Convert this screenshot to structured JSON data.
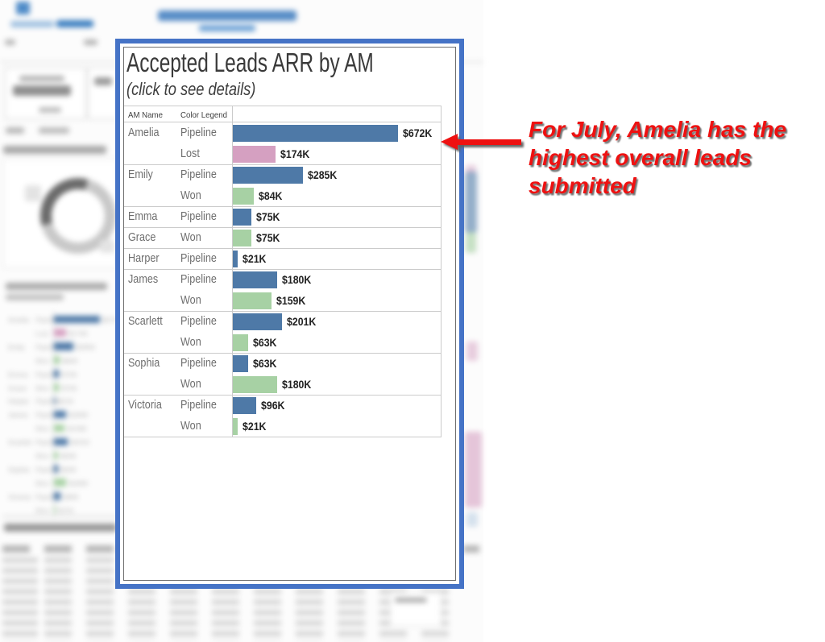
{
  "popup": {
    "title": "Accepted Leads ARR by AM",
    "subtitle": "(click to see details)",
    "columns": {
      "am_name": "AM Name",
      "color_legend": "Color Legend"
    },
    "rows": [
      {
        "am": "Amelia",
        "legend": "Pipeline",
        "value_k": 672,
        "label": "$672K",
        "group_start": true
      },
      {
        "am": "",
        "legend": "Lost",
        "value_k": 174,
        "label": "$174K"
      },
      {
        "am": "Emily",
        "legend": "Pipeline",
        "value_k": 285,
        "label": "$285K",
        "group_start": true
      },
      {
        "am": "",
        "legend": "Won",
        "value_k": 84,
        "label": "$84K"
      },
      {
        "am": "Emma",
        "legend": "Pipeline",
        "value_k": 75,
        "label": "$75K",
        "group_start": true
      },
      {
        "am": "Grace",
        "legend": "Won",
        "value_k": 75,
        "label": "$75K",
        "group_start": true
      },
      {
        "am": "Harper",
        "legend": "Pipeline",
        "value_k": 21,
        "label": "$21K",
        "group_start": true
      },
      {
        "am": "James",
        "legend": "Pipeline",
        "value_k": 180,
        "label": "$180K",
        "group_start": true
      },
      {
        "am": "",
        "legend": "Won",
        "value_k": 159,
        "label": "$159K"
      },
      {
        "am": "Scarlett",
        "legend": "Pipeline",
        "value_k": 201,
        "label": "$201K",
        "group_start": true
      },
      {
        "am": "",
        "legend": "Won",
        "value_k": 63,
        "label": "$63K"
      },
      {
        "am": "Sophia",
        "legend": "Pipeline",
        "value_k": 63,
        "label": "$63K",
        "group_start": true
      },
      {
        "am": "",
        "legend": "Won",
        "value_k": 180,
        "label": "$180K"
      },
      {
        "am": "Victoria",
        "legend": "Pipeline",
        "value_k": 96,
        "label": "$96K",
        "group_start": true
      },
      {
        "am": "",
        "legend": "Won",
        "value_k": 21,
        "label": "$21K"
      }
    ],
    "colors": {
      "Pipeline": "#4e79a7",
      "Lost": "#d5a0c1",
      "Won": "#a7d1a4",
      "border_blue": "#4573c6",
      "inner_border": "#6f6f6f"
    }
  },
  "annotation": {
    "lines": [
      "For July, Amelia has the",
      "highest overall leads",
      "submitted"
    ],
    "color": "#ee1111"
  },
  "chart_data": {
    "type": "bar",
    "orientation": "horizontal",
    "title": "Accepted Leads ARR by AM",
    "subtitle": "(click to see details)",
    "legend_entries": [
      "Pipeline",
      "Lost",
      "Won"
    ],
    "series": [
      {
        "am": "Amelia",
        "legend": "Pipeline",
        "value_usd": 672000
      },
      {
        "am": "Amelia",
        "legend": "Lost",
        "value_usd": 174000
      },
      {
        "am": "Emily",
        "legend": "Pipeline",
        "value_usd": 285000
      },
      {
        "am": "Emily",
        "legend": "Won",
        "value_usd": 84000
      },
      {
        "am": "Emma",
        "legend": "Pipeline",
        "value_usd": 75000
      },
      {
        "am": "Grace",
        "legend": "Won",
        "value_usd": 75000
      },
      {
        "am": "Harper",
        "legend": "Pipeline",
        "value_usd": 21000
      },
      {
        "am": "James",
        "legend": "Pipeline",
        "value_usd": 180000
      },
      {
        "am": "James",
        "legend": "Won",
        "value_usd": 159000
      },
      {
        "am": "Scarlett",
        "legend": "Pipeline",
        "value_usd": 201000
      },
      {
        "am": "Scarlett",
        "legend": "Won",
        "value_usd": 63000
      },
      {
        "am": "Sophia",
        "legend": "Pipeline",
        "value_usd": 63000
      },
      {
        "am": "Sophia",
        "legend": "Won",
        "value_usd": 180000
      },
      {
        "am": "Victoria",
        "legend": "Pipeline",
        "value_usd": 96000
      },
      {
        "am": "Victoria",
        "legend": "Won",
        "value_usd": 21000
      }
    ]
  }
}
